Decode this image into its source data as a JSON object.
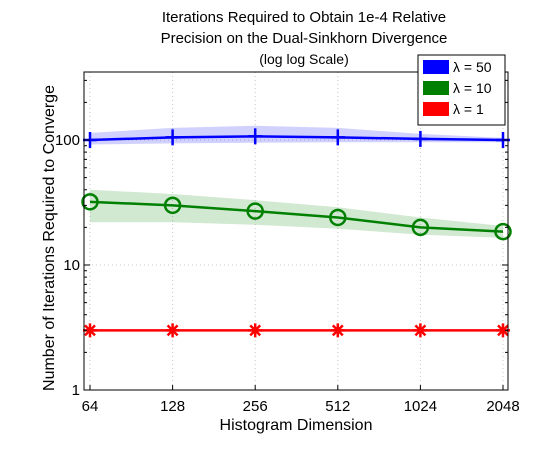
{
  "chart_data": {
    "type": "line",
    "title": "Iterations Required to Obtain 1e-4 Relative",
    "subtitle": "Precision on the Dual-Sinkhorn Divergence",
    "title_note": "(log log Scale)",
    "xlabel": "Histogram Dimension",
    "ylabel": "Number of Iterations Required to Converge",
    "x": [
      64,
      128,
      256,
      512,
      1024,
      2048
    ],
    "x_ticks": [
      "64",
      "128",
      "256",
      "512",
      "1024",
      "2048"
    ],
    "y_ticks": [
      "1",
      "10",
      "100"
    ],
    "y_scale": "log",
    "x_scale": "log2",
    "ylim": [
      1,
      350
    ],
    "grid": true,
    "legend_position": "top-right",
    "series": [
      {
        "name": "λ = 50",
        "color": "#0000ff",
        "marker": "plus",
        "values": [
          100,
          105,
          107,
          105,
          102,
          100
        ],
        "band_low": [
          92,
          94,
          95,
          96,
          96,
          96
        ],
        "band_high": [
          114,
          125,
          130,
          125,
          112,
          104
        ]
      },
      {
        "name": "λ = 10",
        "color": "#008000",
        "marker": "circle",
        "values": [
          32,
          30,
          27,
          24,
          20,
          18.5
        ],
        "band_low": [
          22,
          22,
          21,
          19.5,
          17.5,
          16.5
        ],
        "band_high": [
          40,
          37,
          33,
          29,
          24,
          20.5
        ]
      },
      {
        "name": "λ = 1",
        "color": "#ff0000",
        "marker": "star",
        "values": [
          3,
          3,
          3,
          3,
          3,
          3
        ],
        "band_low": [
          2.95,
          2.95,
          2.95,
          2.95,
          2.95,
          2.95
        ],
        "band_high": [
          3.05,
          3.05,
          3.05,
          3.05,
          3.05,
          3.05
        ]
      }
    ]
  }
}
